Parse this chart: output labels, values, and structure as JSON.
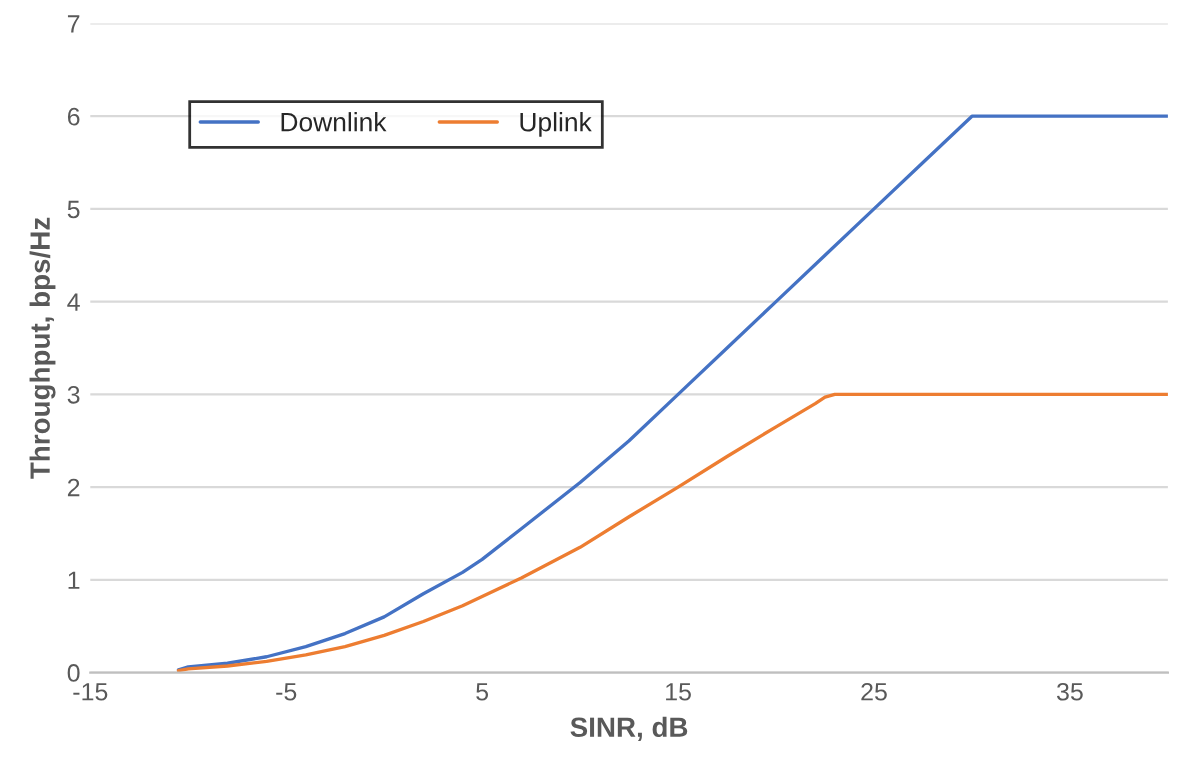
{
  "chart_data": {
    "type": "line",
    "xlabel": "SINR, dB",
    "ylabel": "Throughput, bps/Hz",
    "xlim": [
      -15,
      40
    ],
    "xticks": [
      -15,
      -5,
      5,
      15,
      25,
      35
    ],
    "ylim": [
      0,
      7
    ],
    "yticks": [
      0,
      1,
      2,
      3,
      4,
      5,
      6,
      7
    ],
    "grid": "y",
    "legend": "top left",
    "marker": "none",
    "line_style": "solid",
    "series": [
      {
        "name": "Downlink",
        "color": "#4472c4",
        "x": [
          -10.5,
          -10,
          -8,
          -6,
          -4,
          -2,
          0,
          2,
          4,
          5,
          7,
          10,
          12.5,
          15,
          17.5,
          20,
          22.5,
          25,
          27.5,
          29.5,
          30,
          40
        ],
        "values": [
          0.03,
          0.06,
          0.1,
          0.17,
          0.28,
          0.42,
          0.6,
          0.85,
          1.08,
          1.22,
          1.55,
          2.05,
          2.5,
          3.0,
          3.5,
          4.0,
          4.5,
          5.0,
          5.5,
          5.9,
          6.0,
          6.0
        ]
      },
      {
        "name": "Uplink",
        "color": "#ed7d31",
        "x": [
          -10.5,
          -10,
          -8,
          -6,
          -4,
          -2,
          0,
          2,
          4,
          5,
          7,
          10,
          12.5,
          15,
          17.5,
          20,
          22,
          22.5,
          23,
          40
        ],
        "values": [
          0.02,
          0.04,
          0.07,
          0.12,
          0.19,
          0.28,
          0.4,
          0.55,
          0.72,
          0.82,
          1.02,
          1.35,
          1.68,
          2.0,
          2.33,
          2.65,
          2.9,
          2.97,
          3.0,
          3.0
        ]
      }
    ]
  }
}
